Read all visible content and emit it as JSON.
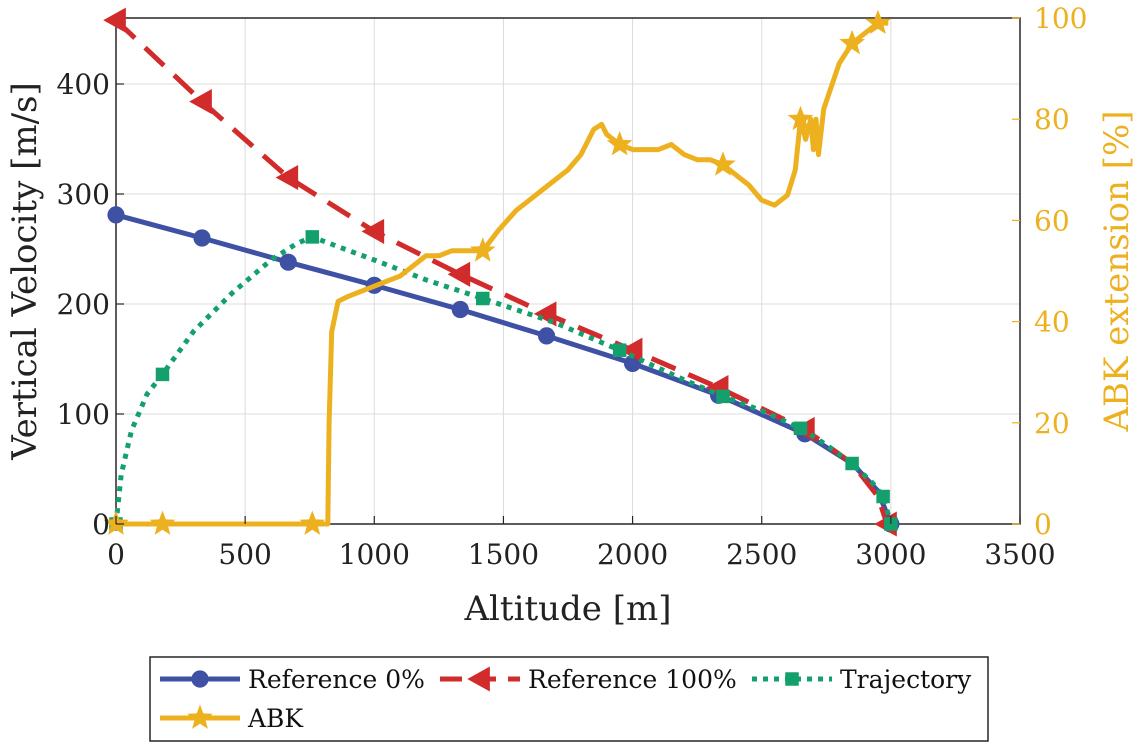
{
  "chart_data": {
    "type": "line",
    "xlabel": "Altitude [m]",
    "ylabel": "Vertical Velocity [m/s]",
    "ylabel_right": "ABK extension [%]",
    "xlim": [
      0,
      3500
    ],
    "ylim": [
      0,
      460
    ],
    "ylim_right": [
      0,
      100
    ],
    "x_ticks": [
      0,
      500,
      1000,
      1500,
      2000,
      2500,
      3000,
      3500
    ],
    "y_ticks": [
      0,
      100,
      200,
      300,
      400
    ],
    "y_ticks_right": [
      0,
      20,
      40,
      60,
      80,
      100
    ],
    "grid": true,
    "legend_position": "bottom-outside",
    "series": [
      {
        "name": "Reference 0%",
        "axis": "left",
        "color": "#3F51A5",
        "style": "solid",
        "marker": "circle",
        "x": [
          0,
          333,
          667,
          1000,
          1333,
          1667,
          2000,
          2333,
          2667,
          2850,
          2950,
          3000
        ],
        "y": [
          281,
          260,
          238,
          217,
          195,
          171,
          146,
          117,
          82,
          55,
          30,
          0
        ],
        "marker_x": [
          0,
          333,
          667,
          1000,
          1333,
          1667,
          2000,
          2333,
          2667,
          3000
        ],
        "marker_y": [
          281,
          260,
          238,
          217,
          195,
          171,
          146,
          117,
          82,
          0
        ]
      },
      {
        "name": "Reference 100%",
        "axis": "left",
        "color": "#D22B2B",
        "style": "dashed",
        "marker": "triangle-left",
        "x": [
          0,
          333,
          667,
          1000,
          1333,
          1667,
          2000,
          2333,
          2667,
          2850,
          2950,
          2985
        ],
        "y": [
          458,
          384,
          315,
          266,
          227,
          191,
          158,
          124,
          86,
          55,
          25,
          0
        ],
        "marker_x": [
          0,
          333,
          667,
          1000,
          1333,
          1667,
          2000,
          2333,
          2667,
          2985
        ],
        "marker_y": [
          458,
          384,
          315,
          266,
          227,
          191,
          158,
          124,
          86,
          0
        ]
      },
      {
        "name": "Trajectory",
        "axis": "left",
        "color": "#13A06D",
        "style": "dotted",
        "marker": "square",
        "x": [
          0,
          20,
          60,
          120,
          180,
          300,
          450,
          600,
          700,
          760,
          850,
          1000,
          1200,
          1420,
          1700,
          1950,
          2200,
          2350,
          2500,
          2650,
          2750,
          2850,
          2930,
          2970,
          3000
        ],
        "y": [
          0,
          45,
          85,
          118,
          136,
          175,
          210,
          240,
          255,
          261,
          253,
          240,
          222,
          205,
          183,
          158,
          131,
          116,
          103,
          87,
          72,
          55,
          37,
          25,
          0
        ],
        "marker_x": [
          0,
          180,
          760,
          1420,
          1950,
          2350,
          2650,
          2850,
          2970,
          3000
        ],
        "marker_y": [
          0,
          136,
          261,
          205,
          158,
          116,
          87,
          55,
          25,
          0
        ]
      },
      {
        "name": "ABK",
        "axis": "right",
        "color": "#EDB120",
        "style": "solid",
        "marker": "star",
        "x": [
          0,
          180,
          760,
          820,
          825,
          835,
          860,
          900,
          950,
          1000,
          1050,
          1100,
          1150,
          1200,
          1250,
          1300,
          1350,
          1420,
          1480,
          1550,
          1600,
          1650,
          1700,
          1750,
          1800,
          1850,
          1880,
          1900,
          1950,
          2000,
          2050,
          2100,
          2150,
          2200,
          2250,
          2300,
          2350,
          2400,
          2450,
          2500,
          2550,
          2600,
          2630,
          2650,
          2670,
          2690,
          2700,
          2710,
          2720,
          2740,
          2800,
          2850,
          2900,
          2950,
          2990
        ],
        "y": [
          0,
          0,
          0,
          0,
          20,
          38,
          44,
          45,
          46,
          47,
          48,
          49,
          51,
          53,
          53,
          54,
          54,
          54,
          58,
          62,
          64,
          66,
          68,
          70,
          73,
          78,
          79,
          77,
          75,
          74,
          74,
          74,
          75,
          73,
          72,
          72,
          71,
          69,
          67,
          64,
          63,
          65,
          70,
          80,
          76,
          80,
          74,
          80,
          73,
          82,
          91,
          95,
          97,
          99,
          99
        ],
        "marker_x": [
          0,
          180,
          760,
          1420,
          1950,
          2350,
          2650,
          2850,
          2950
        ],
        "marker_y": [
          0,
          0,
          0,
          54,
          75,
          71,
          80,
          95,
          99
        ]
      }
    ]
  }
}
